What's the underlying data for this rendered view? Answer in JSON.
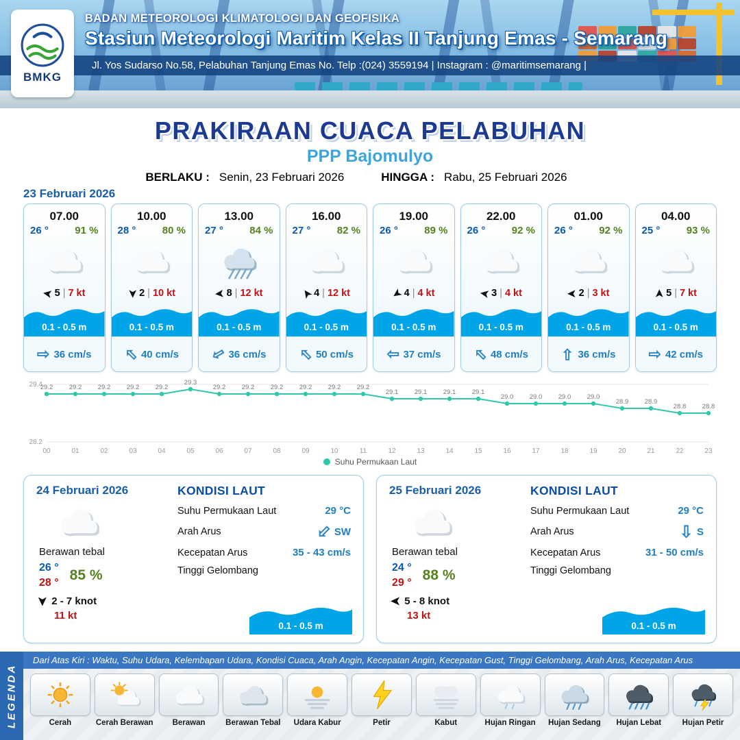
{
  "header": {
    "agency": "BADAN METEOROLOGI KLIMATOLOGI DAN GEOFISIKA",
    "station": "Stasiun Meteorologi Maritim Kelas II Tanjung Emas - Semarang",
    "address": "Jl. Yos Sudarso No.58, Pelabuhan Tanjung Emas No. Telp :(024) 3559194 | Instagram : @maritimsemarang |",
    "logo_text": "BMKG"
  },
  "title": {
    "main": "PRAKIRAAN CUACA PELABUHAN",
    "port": "PPP Bajomulyo",
    "berlaku_label": "BERLAKU :",
    "berlaku_value": "Senin, 23 Februari 2026",
    "hingga_label": "HINGGA :",
    "hingga_value": "Rabu, 25 Februari 2026"
  },
  "hourly": {
    "date": "23 Februari 2026",
    "cards": [
      {
        "time": "07.00",
        "temp": "26 °",
        "humidity": "91 %",
        "icon": "cloud",
        "wind_deg": 190,
        "wind_val": "5",
        "sep": "|",
        "wind_gust": "7 kt",
        "wave": "0.1 - 0.5 m",
        "current_deg": 0,
        "current": "36 cm/s"
      },
      {
        "time": "10.00",
        "temp": "28 °",
        "humidity": "80 %",
        "icon": "cloud",
        "wind_deg": 90,
        "wind_val": "2",
        "sep": "|",
        "wind_gust": "10 kt",
        "wave": "0.1 - 0.5 m",
        "current_deg": 225,
        "current": "40 cm/s"
      },
      {
        "time": "13.00",
        "temp": "27 °",
        "humidity": "84 %",
        "icon": "rain-card",
        "wind_deg": 175,
        "wind_val": "8",
        "sep": "|",
        "wind_gust": "12 kt",
        "wave": "0.1 - 0.5 m",
        "current_deg": 150,
        "current": "36 cm/s"
      },
      {
        "time": "16.00",
        "temp": "27 °",
        "humidity": "82 %",
        "icon": "cloud",
        "wind_deg": 235,
        "wind_val": "4",
        "sep": "|",
        "wind_gust": "12 kt",
        "wave": "0.1 - 0.5 m",
        "current_deg": 225,
        "current": "50 cm/s"
      },
      {
        "time": "19.00",
        "temp": "26 °",
        "humidity": "89 %",
        "icon": "cloud",
        "wind_deg": 145,
        "wind_val": "4",
        "sep": "|",
        "wind_gust": "4 kt",
        "wave": "0.1 - 0.5 m",
        "current_deg": 180,
        "current": "37 cm/s"
      },
      {
        "time": "22.00",
        "temp": "26 °",
        "humidity": "92 %",
        "icon": "cloud",
        "wind_deg": 190,
        "wind_val": "3",
        "sep": "|",
        "wind_gust": "4 kt",
        "wave": "0.1 - 0.5 m",
        "current_deg": 225,
        "current": "48 cm/s"
      },
      {
        "time": "01.00",
        "temp": "26 °",
        "humidity": "92 %",
        "icon": "cloud",
        "wind_deg": 180,
        "wind_val": "2",
        "sep": "|",
        "wind_gust": "3 kt",
        "wave": "0.1 - 0.5 m",
        "current_deg": 270,
        "current": "36 cm/s"
      },
      {
        "time": "04.00",
        "temp": "25 °",
        "humidity": "93 %",
        "icon": "cloud",
        "wind_deg": 270,
        "wind_val": "5",
        "sep": "|",
        "wind_gust": "7 kt",
        "wave": "0.1 - 0.5 m",
        "current_deg": 0,
        "current": "42 cm/s"
      }
    ]
  },
  "chart_data": {
    "type": "line",
    "x": [
      "00",
      "01",
      "02",
      "03",
      "04",
      "05",
      "06",
      "07",
      "08",
      "09",
      "10",
      "11",
      "12",
      "13",
      "14",
      "15",
      "16",
      "17",
      "18",
      "19",
      "20",
      "21",
      "22",
      "23"
    ],
    "values": [
      29.2,
      29.2,
      29.2,
      29.2,
      29.2,
      29.3,
      29.2,
      29.2,
      29.2,
      29.2,
      29.2,
      29.2,
      29.1,
      29.1,
      29.1,
      29.1,
      29.0,
      29.0,
      29.0,
      29.0,
      28.9,
      28.9,
      28.8,
      28.8
    ],
    "series_name": "Suhu Permukaan Laut",
    "ylim": [
      28.2,
      29.4
    ],
    "y_ticks": [
      "29.4",
      "28.2"
    ],
    "color": "#2FC9A9",
    "legend": "Suhu Permukaan Laut",
    "legend_position": "bottom",
    "grid": true
  },
  "daily": [
    {
      "date": "24 Februari 2026",
      "icon": "cloud",
      "condition": "Berawan tebal",
      "temp_min": "26 °",
      "temp_max": "28 °",
      "humidity": "85 %",
      "wind_deg": 90,
      "wind_range": "2 - 7 knot",
      "wind_gust": "11 kt",
      "sea": {
        "title": "KONDISI LAUT",
        "sst_label": "Suhu Permukaan Laut",
        "sst_value": "29 °C",
        "arus_label": "Arah Arus",
        "arus_deg": 135,
        "arus_dir": "SW",
        "kecepatan_label": "Kecepatan Arus",
        "kecepatan_value": "35 - 43 cm/s",
        "gelombang_label": "Tinggi Gelombang",
        "gelombang_value": "0.1 - 0.5 m"
      }
    },
    {
      "date": "25 Februari 2026",
      "icon": "cloud",
      "condition": "Berawan tebal",
      "temp_min": "24 °",
      "temp_max": "29 °",
      "humidity": "88 %",
      "wind_deg": 180,
      "wind_range": "5 - 8 knot",
      "wind_gust": "13 kt",
      "sea": {
        "title": "KONDISI LAUT",
        "sst_label": "Suhu Permukaan Laut",
        "sst_value": "29 °C",
        "arus_label": "Arah Arus",
        "arus_deg": 90,
        "arus_dir": "S",
        "kecepatan_label": "Kecepatan Arus",
        "kecepatan_value": "31 - 50 cm/s",
        "gelombang_label": "Tinggi Gelombang",
        "gelombang_value": "0.1 - 0.5 m"
      }
    }
  ],
  "legend": {
    "side_label": "LEGENDA",
    "description": "Dari Atas Kiri : Waktu, Suhu Udara, Kelembapan Udara, Kondisi Cuaca, Arah Angin, Kecepatan Angin, Kecepatan Gust, Tinggi Gelombang, Arah Arus, Kecepatan Arus",
    "items": [
      {
        "label": "Cerah",
        "icon": "sun"
      },
      {
        "label": "Cerah Berawan",
        "icon": "sun-cloud"
      },
      {
        "label": "Berawan",
        "icon": "cloud"
      },
      {
        "label": "Berawan Tebal",
        "icon": "cloud-thick"
      },
      {
        "label": "Udara Kabur",
        "icon": "haze"
      },
      {
        "label": "Petir",
        "icon": "lightning"
      },
      {
        "label": "Kabut",
        "icon": "fog"
      },
      {
        "label": "Hujan Ringan",
        "icon": "rain-light"
      },
      {
        "label": "Hujan Sedang",
        "icon": "rain-medium"
      },
      {
        "label": "Hujan Lebat",
        "icon": "rain-heavy"
      },
      {
        "label": "Hujan Petir",
        "icon": "thunderstorm"
      }
    ]
  },
  "colors": {
    "accent_blue": "#1A5EA8",
    "wave_blue": "#00A5E8",
    "humidity_green": "#55821E",
    "gust_red": "#C11212",
    "sst_line": "#2FC9A9"
  }
}
